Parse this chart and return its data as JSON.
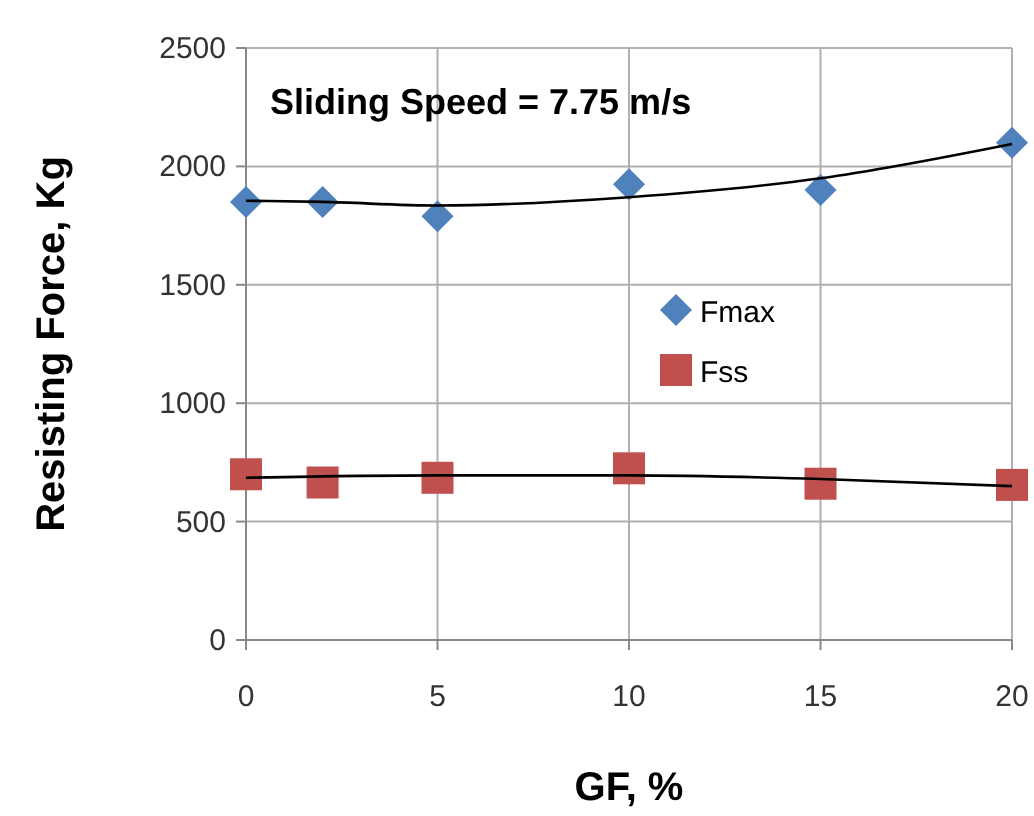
{
  "chart_data": {
    "type": "scatter",
    "xlabel": "GF, %",
    "ylabel": "Resisting Force, Kg",
    "annotations": [
      "Sliding Speed = 7.75 m/s"
    ],
    "xlim": [
      0,
      20
    ],
    "xticks": [
      0,
      5,
      10,
      15,
      20
    ],
    "ylim": [
      0,
      2500
    ],
    "yticks": [
      0,
      500,
      1000,
      1500,
      2000,
      2500
    ],
    "grid": true,
    "legend": "right",
    "series": [
      {
        "name": "Fmax",
        "color": "#4f81bd",
        "marker": "diamond",
        "x": [
          0,
          2,
          5,
          10,
          15,
          20
        ],
        "values": [
          1850,
          1850,
          1790,
          1925,
          1900,
          2100
        ]
      },
      {
        "name": "Fss",
        "color": "#c0504d",
        "marker": "square",
        "x": [
          0,
          2,
          5,
          10,
          15,
          20
        ],
        "values": [
          700,
          665,
          685,
          725,
          660,
          655
        ]
      },
      {
        "type": "line",
        "color": "#000000",
        "marker": "none",
        "x": [
          0,
          2,
          5,
          10,
          15,
          20
        ],
        "values": [
          1855,
          1850,
          1835,
          1870,
          1950,
          2095
        ]
      },
      {
        "type": "line",
        "color": "#000000",
        "marker": "none",
        "x": [
          0,
          5,
          10,
          15,
          20
        ],
        "values": [
          685,
          695,
          695,
          680,
          650
        ]
      }
    ]
  }
}
